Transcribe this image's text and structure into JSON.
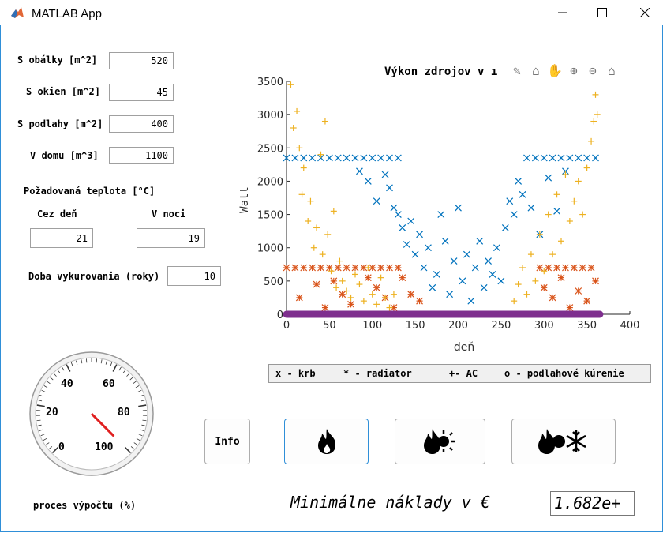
{
  "window": {
    "title": "MATLAB App"
  },
  "inputs": {
    "s_obalky": {
      "label": "S obálky [m^2]",
      "value": "520"
    },
    "s_okien": {
      "label": "S okien [m^2]",
      "value": "45"
    },
    "s_podlahy": {
      "label": "S podlahy [m^2]",
      "value": "400"
    },
    "v_domu": {
      "label": "V domu [m^3]",
      "value": "1100"
    }
  },
  "temperature": {
    "heading": "Požadovaná teplota [°C]",
    "day": {
      "label": "Cez deň",
      "value": "21"
    },
    "night": {
      "label": "V noci",
      "value": "19"
    }
  },
  "duration": {
    "label": "Doba vykurovania (roky)",
    "value": "10"
  },
  "gauge": {
    "ticks": [
      "0",
      "20",
      "40",
      "60",
      "80",
      "100"
    ],
    "value": 100,
    "label": "proces výpočtu (%)"
  },
  "legend": {
    "krb": "x - krb",
    "radiator": "* - radiator",
    "ac": "+- AC",
    "floor": "o - podlahové kúrenie"
  },
  "buttons": {
    "info": "Info"
  },
  "result": {
    "label": "Minimálne náklady v €",
    "value": "1.682e+"
  },
  "colors": {
    "krb": "#0072bd",
    "radiator": "#d95319",
    "ac": "#edb120",
    "floor": "#7e2f8e"
  },
  "chart_data": {
    "type": "scatter",
    "title": "Výkon zdrojov v ı",
    "xlabel": "deň",
    "ylabel": "Watt",
    "xlim": [
      0,
      400
    ],
    "ylim": [
      0,
      3500
    ],
    "xticks": [
      0,
      50,
      100,
      150,
      200,
      250,
      300,
      350,
      400
    ],
    "yticks": [
      0,
      500,
      1000,
      1500,
      2000,
      2500,
      3000,
      3500
    ],
    "series": [
      {
        "marker": "x",
        "points": [
          [
            0,
            2350
          ],
          [
            10,
            2350
          ],
          [
            20,
            2350
          ],
          [
            30,
            2350
          ],
          [
            40,
            2350
          ],
          [
            50,
            2350
          ],
          [
            60,
            2350
          ],
          [
            70,
            2350
          ],
          [
            80,
            2350
          ],
          [
            90,
            2350
          ],
          [
            100,
            2350
          ],
          [
            110,
            2350
          ],
          [
            120,
            2350
          ],
          [
            130,
            2350
          ],
          [
            85,
            2150
          ],
          [
            95,
            2000
          ],
          [
            105,
            1700
          ],
          [
            115,
            2100
          ],
          [
            120,
            1900
          ],
          [
            125,
            1600
          ],
          [
            130,
            1500
          ],
          [
            135,
            1300
          ],
          [
            140,
            1050
          ],
          [
            145,
            1400
          ],
          [
            150,
            900
          ],
          [
            155,
            1200
          ],
          [
            160,
            700
          ],
          [
            165,
            1000
          ],
          [
            170,
            400
          ],
          [
            175,
            600
          ],
          [
            180,
            1500
          ],
          [
            185,
            1100
          ],
          [
            190,
            300
          ],
          [
            195,
            800
          ],
          [
            200,
            1600
          ],
          [
            205,
            500
          ],
          [
            210,
            900
          ],
          [
            215,
            200
          ],
          [
            220,
            700
          ],
          [
            225,
            1100
          ],
          [
            230,
            400
          ],
          [
            235,
            800
          ],
          [
            240,
            600
          ],
          [
            245,
            1000
          ],
          [
            250,
            500
          ],
          [
            255,
            1300
          ],
          [
            260,
            1700
          ],
          [
            265,
            1500
          ],
          [
            270,
            2000
          ],
          [
            275,
            1800
          ],
          [
            280,
            2350
          ],
          [
            290,
            2350
          ],
          [
            300,
            2350
          ],
          [
            310,
            2350
          ],
          [
            320,
            2350
          ],
          [
            330,
            2350
          ],
          [
            340,
            2350
          ],
          [
            350,
            2350
          ],
          [
            360,
            2350
          ],
          [
            285,
            1600
          ],
          [
            295,
            1200
          ],
          [
            305,
            2050
          ],
          [
            315,
            1550
          ],
          [
            325,
            2150
          ]
        ]
      },
      {
        "marker": "*",
        "points": [
          [
            0,
            700
          ],
          [
            10,
            700
          ],
          [
            20,
            700
          ],
          [
            30,
            700
          ],
          [
            40,
            700
          ],
          [
            50,
            700
          ],
          [
            60,
            700
          ],
          [
            70,
            700
          ],
          [
            80,
            700
          ],
          [
            90,
            700
          ],
          [
            100,
            700
          ],
          [
            110,
            700
          ],
          [
            120,
            700
          ],
          [
            130,
            700
          ],
          [
            15,
            250
          ],
          [
            35,
            450
          ],
          [
            45,
            100
          ],
          [
            55,
            500
          ],
          [
            65,
            300
          ],
          [
            75,
            150
          ],
          [
            95,
            550
          ],
          [
            105,
            400
          ],
          [
            115,
            250
          ],
          [
            125,
            100
          ],
          [
            135,
            550
          ],
          [
            145,
            300
          ],
          [
            155,
            200
          ],
          [
            295,
            700
          ],
          [
            305,
            700
          ],
          [
            315,
            700
          ],
          [
            325,
            700
          ],
          [
            335,
            700
          ],
          [
            345,
            700
          ],
          [
            355,
            700
          ],
          [
            300,
            400
          ],
          [
            310,
            250
          ],
          [
            320,
            550
          ],
          [
            330,
            100
          ],
          [
            340,
            350
          ],
          [
            350,
            200
          ],
          [
            360,
            500
          ]
        ]
      },
      {
        "marker": "+",
        "points": [
          [
            5,
            3450
          ],
          [
            8,
            2800
          ],
          [
            12,
            3050
          ],
          [
            15,
            2500
          ],
          [
            18,
            1800
          ],
          [
            20,
            2200
          ],
          [
            25,
            1400
          ],
          [
            28,
            1700
          ],
          [
            32,
            1000
          ],
          [
            35,
            1300
          ],
          [
            40,
            2400
          ],
          [
            42,
            900
          ],
          [
            45,
            2900
          ],
          [
            48,
            1200
          ],
          [
            52,
            650
          ],
          [
            55,
            1550
          ],
          [
            58,
            400
          ],
          [
            62,
            800
          ],
          [
            65,
            500
          ],
          [
            70,
            350
          ],
          [
            75,
            250
          ],
          [
            80,
            600
          ],
          [
            85,
            450
          ],
          [
            90,
            200
          ],
          [
            95,
            700
          ],
          [
            100,
            300
          ],
          [
            105,
            150
          ],
          [
            110,
            550
          ],
          [
            115,
            250
          ],
          [
            120,
            100
          ],
          [
            125,
            300
          ],
          [
            265,
            200
          ],
          [
            270,
            450
          ],
          [
            275,
            700
          ],
          [
            280,
            300
          ],
          [
            285,
            900
          ],
          [
            290,
            500
          ],
          [
            295,
            1200
          ],
          [
            300,
            650
          ],
          [
            305,
            1500
          ],
          [
            310,
            900
          ],
          [
            315,
            1800
          ],
          [
            320,
            1100
          ],
          [
            325,
            2100
          ],
          [
            330,
            1400
          ],
          [
            335,
            1700
          ],
          [
            340,
            2000
          ],
          [
            345,
            1500
          ],
          [
            350,
            2200
          ],
          [
            355,
            2600
          ],
          [
            358,
            2900
          ],
          [
            360,
            3300
          ],
          [
            362,
            3000
          ]
        ]
      },
      {
        "marker": "o",
        "points": [
          [
            0,
            0
          ],
          [
            365,
            0
          ]
        ]
      }
    ]
  }
}
